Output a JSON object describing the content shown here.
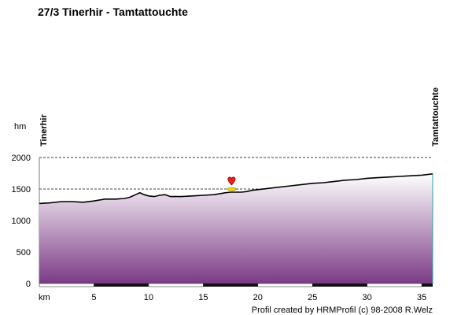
{
  "chart_data": {
    "type": "area",
    "title": "27/3 Tinerhir - Tamtattouchte",
    "ylabel": "hm",
    "xlabel": "km",
    "start_location": "Tinerhir",
    "end_location": "Tamtattouchte",
    "xlim": [
      0,
      36
    ],
    "ylim": [
      0,
      2000
    ],
    "x_ticks": [
      "5",
      "10",
      "15",
      "20",
      "25",
      "30",
      "35"
    ],
    "y_ticks": [
      "0",
      "500",
      "1000",
      "1500",
      "2000"
    ],
    "grid": "horizontal-dashed",
    "fill_gradient": [
      "#ffffff",
      "#7b3a86"
    ],
    "line_color": "#000000",
    "series": [
      {
        "x": [
          0,
          1,
          2,
          3,
          4,
          5,
          6,
          7,
          7.8,
          8.3,
          8.8,
          9.2,
          9.6,
          10,
          10.5,
          11,
          11.5,
          12,
          13,
          14,
          15,
          16,
          17,
          17.5,
          18,
          18.5,
          19,
          19.5,
          20,
          21,
          22,
          23,
          24,
          25,
          26,
          27,
          28,
          29,
          30,
          31,
          32,
          33,
          34,
          35,
          36
        ],
        "y": [
          1270,
          1280,
          1300,
          1300,
          1290,
          1310,
          1340,
          1340,
          1350,
          1370,
          1410,
          1440,
          1410,
          1390,
          1380,
          1400,
          1410,
          1380,
          1380,
          1390,
          1400,
          1410,
          1440,
          1450,
          1450,
          1450,
          1460,
          1480,
          1490,
          1510,
          1530,
          1550,
          1570,
          1590,
          1600,
          1620,
          1640,
          1650,
          1670,
          1680,
          1690,
          1700,
          1710,
          1720,
          1740
        ]
      }
    ],
    "marker": {
      "x": 17.6,
      "icon": "heart-icon",
      "color": "#e8231a"
    }
  },
  "credit": "Profil created by HRMProfil (c) 98-2008 R.Welz"
}
